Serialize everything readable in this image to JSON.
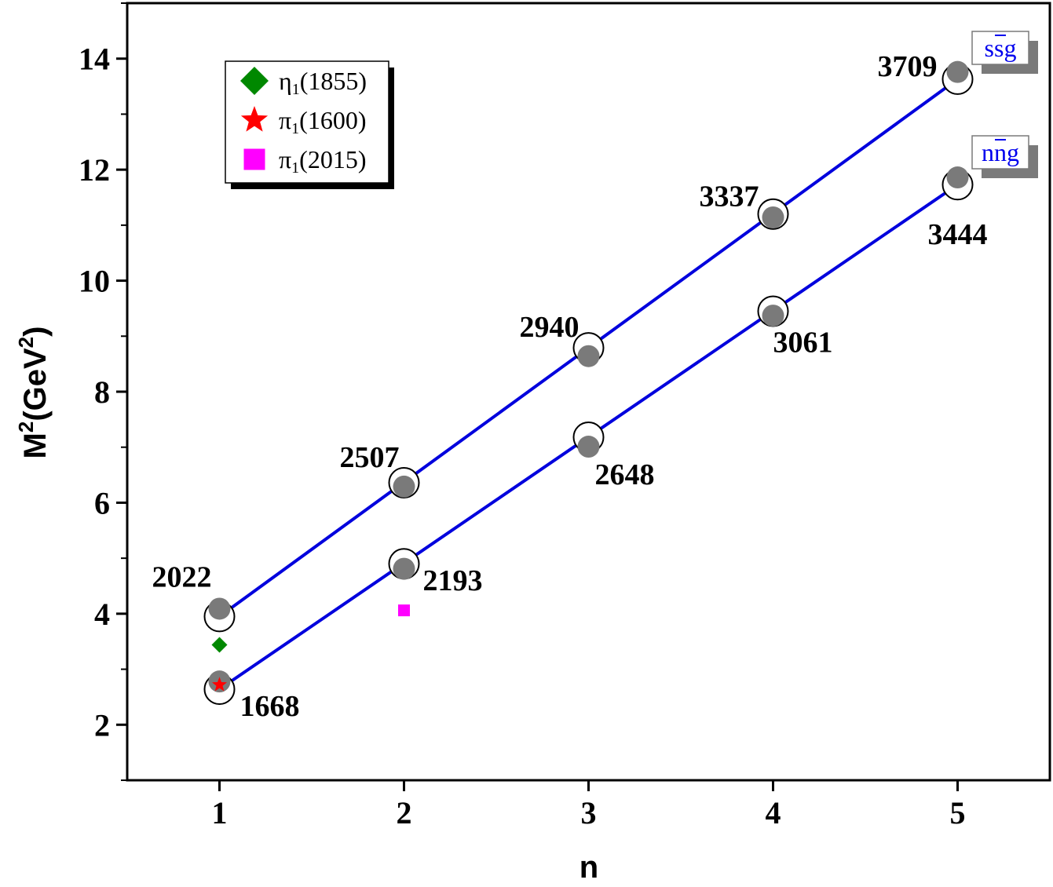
{
  "chart_data": {
    "type": "scatter",
    "xlabel": "n",
    "ylabel": "M",
    "ylabel_sup1": "2",
    "ylabel_mid": "(GeV",
    "ylabel_sup2": "2",
    "ylabel_end": ")",
    "xlim": [
      0.5,
      5.5
    ],
    "ylim": [
      1,
      15
    ],
    "xticks": [
      1,
      2,
      3,
      4,
      5
    ],
    "yticks": [
      2,
      4,
      6,
      8,
      10,
      12,
      14
    ],
    "grid": false,
    "legend_position": "top-left",
    "series": [
      {
        "name": "ssg",
        "tag_main": "ssg",
        "color": "#0000dd",
        "x": [
          1,
          2,
          3,
          4,
          5
        ],
        "y_fit": [
          3.95,
          6.36,
          8.79,
          11.2,
          13.63
        ],
        "y_calc": [
          4.09,
          6.29,
          8.64,
          11.14,
          13.76
        ],
        "labels": [
          "2022",
          "2507",
          "2940",
          "3337",
          "3709"
        ]
      },
      {
        "name": "nng",
        "tag_main": "nng",
        "color": "#0000dd",
        "x": [
          1,
          2,
          3,
          4,
          5
        ],
        "y_fit": [
          2.64,
          4.9,
          7.18,
          9.45,
          11.73
        ],
        "y_calc": [
          2.78,
          4.81,
          7.01,
          9.37,
          11.86
        ],
        "labels": [
          "1668",
          "2193",
          "2648",
          "3061",
          "3444"
        ]
      }
    ],
    "experimental": [
      {
        "name": "η",
        "sub": "1",
        "mass": "(1855)",
        "marker": "diamond",
        "color": "#008800",
        "x": 1,
        "y": 3.44
      },
      {
        "name": "π",
        "sub": "1",
        "mass": "(1600)",
        "marker": "star",
        "color": "#ff0000",
        "x": 1,
        "y": 2.72
      },
      {
        "name": "π",
        "sub": "1",
        "mass": "(2015)",
        "marker": "square",
        "color": "#ff00ff",
        "x": 2,
        "y": 4.06
      }
    ]
  }
}
